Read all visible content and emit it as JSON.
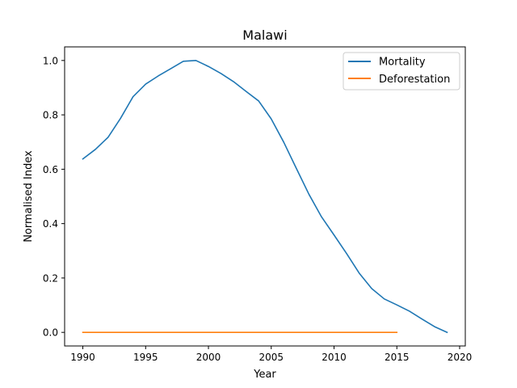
{
  "chart_data": {
    "type": "line",
    "title": "Malawi",
    "xlabel": "Year",
    "ylabel": "Normalised Index",
    "xlim": [
      1988.55,
      2020.45
    ],
    "ylim": [
      -0.05,
      1.05
    ],
    "xticks": [
      1990,
      1995,
      2000,
      2005,
      2010,
      2015,
      2020
    ],
    "xtick_labels": [
      "1990",
      "1995",
      "2000",
      "2005",
      "2010",
      "2015",
      "2020"
    ],
    "yticks": [
      0.0,
      0.2,
      0.4,
      0.6,
      0.8,
      1.0
    ],
    "ytick_labels": [
      "0.0",
      "0.2",
      "0.4",
      "0.6",
      "0.8",
      "1.0"
    ],
    "grid": false,
    "legend_position": "upper right",
    "series": [
      {
        "name": "Mortality",
        "color": "#1f77b4",
        "x": [
          1990,
          1991,
          1992,
          1993,
          1994,
          1995,
          1996,
          1997,
          1998,
          1999,
          2000,
          2001,
          2002,
          2003,
          2004,
          2005,
          2006,
          2007,
          2008,
          2009,
          2010,
          2011,
          2012,
          2013,
          2014,
          2015,
          2016,
          2017,
          2018,
          2019
        ],
        "y": [
          0.638,
          0.673,
          0.717,
          0.787,
          0.867,
          0.913,
          0.943,
          0.97,
          0.997,
          1.0,
          0.978,
          0.952,
          0.922,
          0.886,
          0.851,
          0.785,
          0.699,
          0.603,
          0.508,
          0.425,
          0.358,
          0.29,
          0.218,
          0.161,
          0.123,
          0.101,
          0.078,
          0.049,
          0.021,
          0.0
        ]
      },
      {
        "name": "Deforestation",
        "color": "#ff7f0e",
        "x": [
          1990,
          1991,
          1992,
          1993,
          1994,
          1995,
          1996,
          1997,
          1998,
          1999,
          2000,
          2001,
          2002,
          2003,
          2004,
          2005,
          2006,
          2007,
          2008,
          2009,
          2010,
          2011,
          2012,
          2013,
          2014,
          2015
        ],
        "y": [
          0,
          0,
          0,
          0,
          0,
          0,
          0,
          0,
          0,
          0,
          0,
          0,
          0,
          0,
          0,
          0,
          0,
          0,
          0,
          0,
          0,
          0,
          0,
          0,
          0,
          0
        ]
      }
    ]
  }
}
